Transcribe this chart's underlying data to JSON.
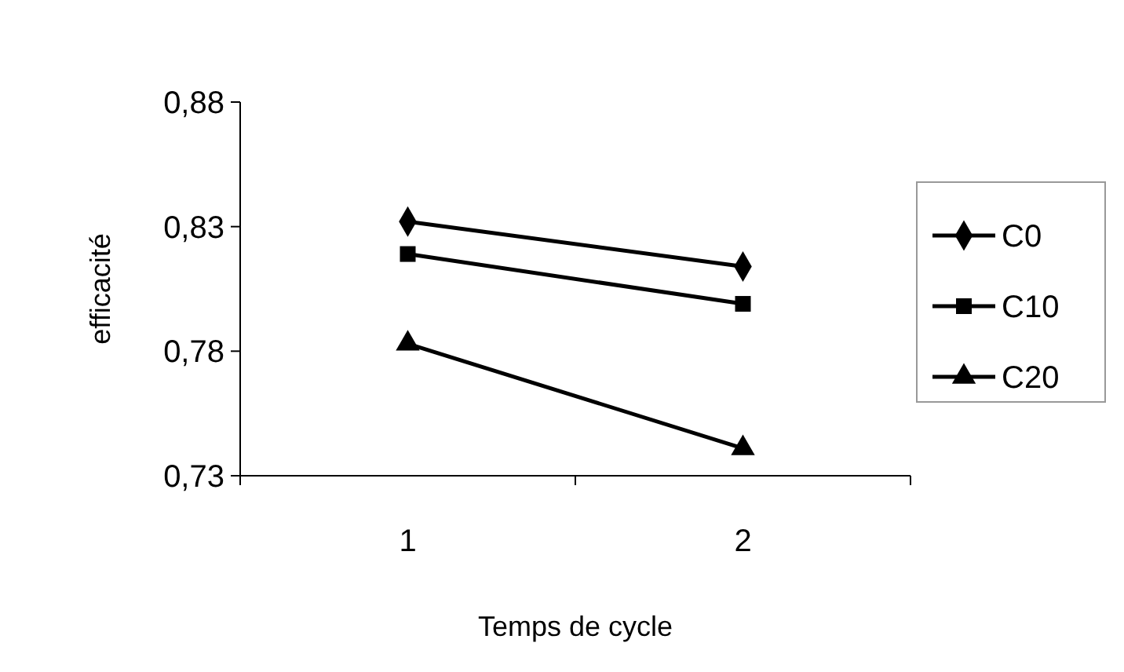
{
  "chart_data": {
    "type": "line",
    "xlabel": "Temps de cycle",
    "ylabel": "efficacité",
    "categories": [
      "1",
      "2"
    ],
    "series": [
      {
        "name": "C0",
        "color": "#000000",
        "marker": "diamond",
        "values": [
          0.832,
          0.814
        ]
      },
      {
        "name": "C10",
        "color": "#000000",
        "marker": "square",
        "values": [
          0.819,
          0.799
        ]
      },
      {
        "name": "C20",
        "color": "#000000",
        "marker": "triangle",
        "values": [
          0.783,
          0.741
        ]
      }
    ],
    "ylim": [
      0.73,
      0.88
    ],
    "yticks": [
      {
        "value": 0.73,
        "label": "0,73"
      },
      {
        "value": 0.78,
        "label": "0,78"
      },
      {
        "value": 0.83,
        "label": "0,83"
      },
      {
        "value": 0.88,
        "label": "0,88"
      }
    ],
    "grid": false,
    "legend": "right",
    "line_style": "solid"
  }
}
